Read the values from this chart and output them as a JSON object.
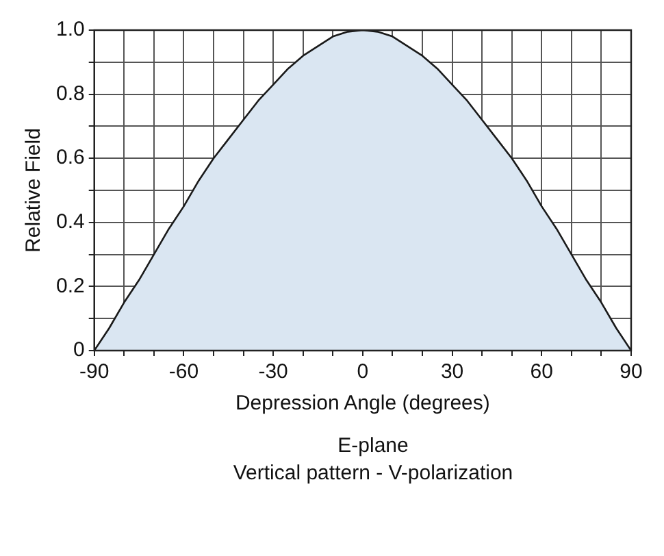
{
  "chart_data": {
    "type": "area",
    "xlabel": "Depression Angle (degrees)",
    "ylabel": "Relative Field",
    "annotations": [
      "E-plane",
      "Vertical pattern - V-polarization"
    ],
    "x": [
      -90,
      -85,
      -80,
      -75,
      -70,
      -65,
      -60,
      -55,
      -50,
      -45,
      -40,
      -35,
      -30,
      -25,
      -20,
      -15,
      -10,
      -5,
      0,
      5,
      10,
      15,
      20,
      25,
      30,
      35,
      40,
      45,
      50,
      55,
      60,
      65,
      70,
      75,
      80,
      85,
      90
    ],
    "series": [
      {
        "color": "#dae6f2",
        "values": [
          0,
          0.07,
          0.15,
          0.22,
          0.3,
          0.38,
          0.45,
          0.53,
          0.6,
          0.66,
          0.72,
          0.78,
          0.83,
          0.88,
          0.92,
          0.95,
          0.98,
          0.995,
          1,
          0.995,
          0.98,
          0.95,
          0.92,
          0.88,
          0.83,
          0.78,
          0.72,
          0.66,
          0.6,
          0.53,
          0.45,
          0.38,
          0.3,
          0.22,
          0.15,
          0.07,
          0
        ]
      }
    ],
    "xlim": [
      -90,
      90
    ],
    "ylim": [
      0,
      1
    ],
    "xticks": [
      -90,
      {
        "value": -80,
        "label": null
      },
      {
        "value": -70,
        "label": null
      },
      -60,
      {
        "value": -50,
        "label": null
      },
      {
        "value": -40,
        "label": null
      },
      -30,
      {
        "value": -20,
        "label": null
      },
      {
        "value": -10,
        "label": null
      },
      0,
      {
        "value": 10,
        "label": null
      },
      {
        "value": 20,
        "label": null
      },
      30,
      {
        "value": 40,
        "label": null
      },
      {
        "value": 50,
        "label": null
      },
      60,
      {
        "value": 70,
        "label": null
      },
      {
        "value": 80,
        "label": null
      },
      90
    ],
    "yticks": [
      0,
      {
        "value": 0.1,
        "label": null
      },
      0.2,
      {
        "value": 0.3,
        "label": null
      },
      0.4,
      {
        "value": 0.5,
        "label": null
      },
      0.6,
      {
        "value": 0.7,
        "label": null
      },
      0.8,
      {
        "value": 0.9,
        "label": null
      },
      {
        "value": 1,
        "label": "1.0"
      }
    ],
    "grid": true,
    "marker": "none"
  }
}
